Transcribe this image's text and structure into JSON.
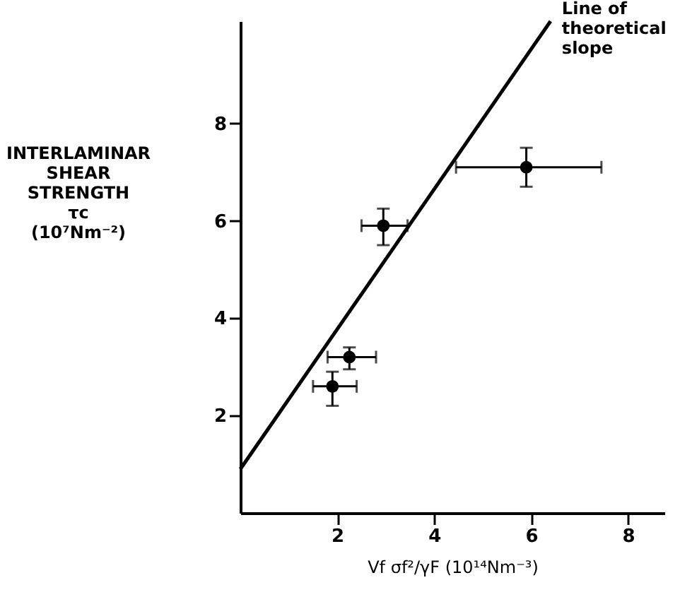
{
  "chart_data": {
    "type": "scatter",
    "xlabel": "Vf σf²/γF (10¹⁴Nm⁻³)",
    "ylabel": "INTERLAMINAR\nSHEAR\nSTRENGTH\nτc\n(10⁷Nm⁻²)",
    "series": [
      {
        "color": "#000000",
        "x": [
          1.9,
          2.25,
          2.95,
          5.9
        ],
        "values": [
          2.6,
          3.2,
          5.9,
          7.1
        ],
        "errors": [
          [
            2.2,
            2.9
          ],
          [
            2.95,
            3.4
          ],
          [
            5.5,
            6.25
          ],
          [
            6.7,
            7.5
          ]
        ],
        "xerrors": [
          [
            1.5,
            2.4
          ],
          [
            1.8,
            2.8
          ],
          [
            2.5,
            3.45
          ],
          [
            4.45,
            7.45
          ]
        ]
      },
      {
        "type": "line",
        "color": "#000000",
        "marker": "none",
        "x": [
          0,
          6.4
        ],
        "values": [
          0.9,
          10.1
        ]
      }
    ],
    "annotations": [
      {
        "text": "Line of\ntheoretical\nslope",
        "x": 6.4,
        "y": 10.1
      }
    ],
    "xlim": [
      0,
      8.75
    ],
    "ylim": [
      0,
      10.1
    ],
    "xticks": [
      2,
      4,
      6,
      8
    ],
    "yticks": [
      2,
      4,
      6,
      8
    ],
    "grid": false,
    "marker": "circle",
    "line_style": "solid"
  }
}
